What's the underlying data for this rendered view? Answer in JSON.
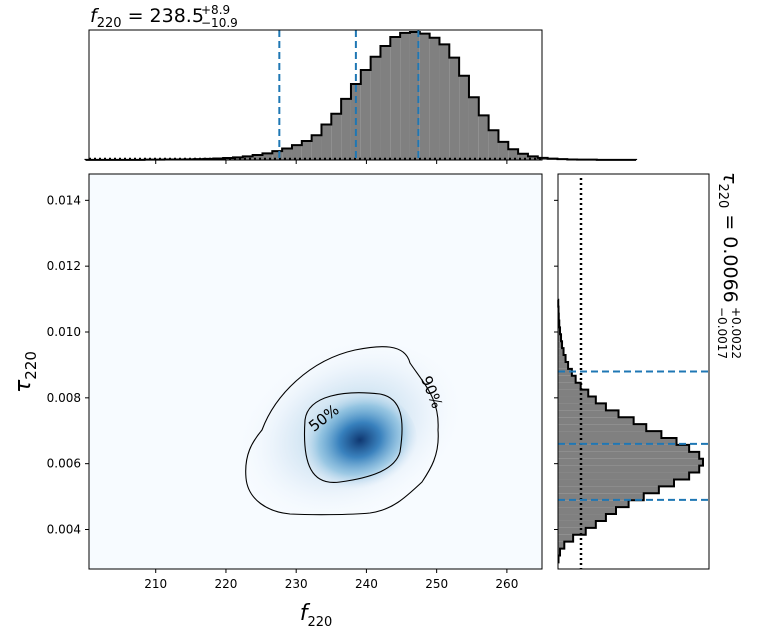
{
  "chart_data": {
    "type": "corner-posterior",
    "titles": {
      "top_main": "f",
      "top_sub": "220",
      "top_val": " = 238.5",
      "top_plus": "+8.9",
      "top_minus": "−10.9",
      "right_main": "τ",
      "right_sub": "220",
      "right_val": " = 0.0066",
      "right_plus": "+0.0022",
      "right_minus": "−0.0017"
    },
    "xlabel": {
      "main": "f",
      "sub": "220"
    },
    "ylabel": {
      "main": "τ",
      "sub": "220"
    },
    "x_ticks": [
      "210",
      "220",
      "230",
      "240",
      "250",
      "260"
    ],
    "y_ticks": [
      "0.004",
      "0.006",
      "0.008",
      "0.010",
      "0.012",
      "0.014"
    ],
    "xlim": [
      200.5,
      265
    ],
    "ylim": [
      0.0028,
      0.0148
    ],
    "contour_labels": [
      "50%",
      "90%"
    ],
    "f_quantiles": [
      227.6,
      238.5,
      247.4
    ],
    "tau_quantiles": [
      0.0049,
      0.0066,
      0.0088
    ],
    "f_hist": {
      "edges_start": 200,
      "bin_width": 1.4,
      "counts": [
        1,
        1,
        1,
        1,
        1,
        1,
        2,
        2,
        3,
        3,
        4,
        5,
        7,
        9,
        12,
        16,
        22,
        30,
        40,
        54,
        70,
        90,
        115,
        150,
        215,
        280,
        370,
        460,
        545,
        625,
        690,
        745,
        770,
        775,
        765,
        740,
        700,
        620,
        510,
        380,
        270,
        180,
        110,
        65,
        38,
        22,
        13,
        8,
        5,
        3,
        2,
        2,
        1,
        1,
        1,
        1
      ]
    },
    "tau_hist": {
      "edges_start": 0.003,
      "bin_width": 0.00021,
      "counts": [
        2,
        8,
        25,
        60,
        110,
        150,
        190,
        230,
        280,
        340,
        400,
        460,
        520,
        560,
        575,
        560,
        520,
        470,
        410,
        350,
        300,
        240,
        190,
        150,
        120,
        90,
        70,
        55,
        40,
        30,
        22,
        16,
        12,
        8,
        5,
        3,
        2,
        1
      ]
    },
    "prior_level_fraction": 0.01,
    "colors": {
      "hist": "#808080",
      "quantile": "#1f77b4",
      "density": "#08519c"
    }
  }
}
